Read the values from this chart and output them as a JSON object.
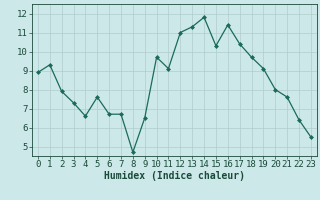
{
  "x": [
    0,
    1,
    2,
    3,
    4,
    5,
    6,
    7,
    8,
    9,
    10,
    11,
    12,
    13,
    14,
    15,
    16,
    17,
    18,
    19,
    20,
    21,
    22,
    23
  ],
  "y": [
    8.9,
    9.3,
    7.9,
    7.3,
    6.6,
    7.6,
    6.7,
    6.7,
    4.7,
    6.5,
    9.7,
    9.1,
    11.0,
    11.3,
    11.8,
    10.3,
    11.4,
    10.4,
    9.7,
    9.1,
    8.0,
    7.6,
    6.4,
    5.5
  ],
  "xlabel": "Humidex (Indice chaleur)",
  "ylim": [
    4.5,
    12.5
  ],
  "xlim": [
    -0.5,
    23.5
  ],
  "yticks": [
    5,
    6,
    7,
    8,
    9,
    10,
    11,
    12
  ],
  "xticks": [
    0,
    1,
    2,
    3,
    4,
    5,
    6,
    7,
    8,
    9,
    10,
    11,
    12,
    13,
    14,
    15,
    16,
    17,
    18,
    19,
    20,
    21,
    22,
    23
  ],
  "line_color": "#1a6b5a",
  "marker": "D",
  "marker_size": 2.0,
  "bg_color": "#cce8e8",
  "grid_color": "#b0cccc",
  "tick_label_color": "#1a4a3a",
  "xlabel_fontsize": 7,
  "tick_fontsize": 6.5,
  "linewidth": 0.9
}
